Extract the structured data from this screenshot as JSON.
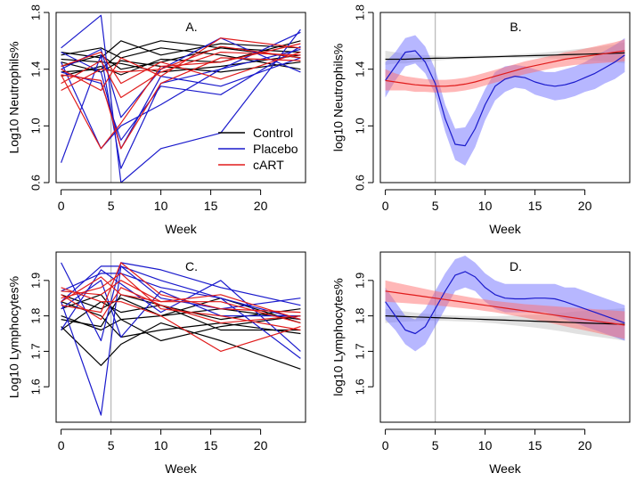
{
  "colors": {
    "control": "#000000",
    "placebo": "#1a1acc",
    "cart": "#e01b1b",
    "vline": "#bbbbbb"
  },
  "chart_data": [
    {
      "id": "A",
      "type": "line",
      "panel_label": "A.",
      "xlabel": "Week",
      "ylabel": "Log10 Neutrophils%",
      "xlim": [
        -0.5,
        24.5
      ],
      "ylim": [
        0.6,
        1.8
      ],
      "xticks": [
        0,
        5,
        10,
        15,
        20
      ],
      "yticks": [
        0.6,
        1.0,
        1.4,
        1.8
      ],
      "yticklabels": [
        "0.6",
        "1.0",
        "1.4",
        "1.8"
      ],
      "vline_x": 5,
      "x": [
        0,
        4,
        6,
        10,
        16,
        24
      ],
      "legend": {
        "position": "lower-right",
        "entries": [
          {
            "label": "Control",
            "group": "control"
          },
          {
            "label": "Placebo",
            "group": "placebo"
          },
          {
            "label": "cART",
            "group": "cart"
          }
        ]
      },
      "series": [
        {
          "group": "control",
          "values": [
            1.52,
            1.48,
            1.6,
            1.5,
            1.58,
            1.55
          ]
        },
        {
          "group": "control",
          "values": [
            1.47,
            1.45,
            1.44,
            1.38,
            1.42,
            1.5
          ]
        },
        {
          "group": "control",
          "values": [
            1.42,
            1.5,
            1.4,
            1.45,
            1.55,
            1.52
          ]
        },
        {
          "group": "control",
          "values": [
            1.38,
            1.4,
            1.52,
            1.6,
            1.55,
            1.48
          ]
        },
        {
          "group": "control",
          "values": [
            1.45,
            1.38,
            1.46,
            1.42,
            1.38,
            1.45
          ]
        },
        {
          "group": "control",
          "values": [
            1.5,
            1.55,
            1.48,
            1.55,
            1.5,
            1.4
          ]
        },
        {
          "group": "control",
          "values": [
            1.35,
            1.42,
            1.36,
            1.47,
            1.45,
            1.6
          ]
        },
        {
          "group": "placebo",
          "values": [
            1.55,
            1.78,
            0.6,
            0.84,
            0.95,
            1.68
          ]
        },
        {
          "group": "placebo",
          "values": [
            0.74,
            1.5,
            0.7,
            1.3,
            1.4,
            1.54
          ]
        },
        {
          "group": "placebo",
          "values": [
            1.52,
            1.38,
            0.84,
            1.35,
            1.28,
            1.48
          ]
        },
        {
          "group": "placebo",
          "values": [
            1.4,
            1.54,
            1.06,
            1.4,
            1.62,
            1.38
          ]
        },
        {
          "group": "placebo",
          "values": [
            1.45,
            0.84,
            1.0,
            1.15,
            1.4,
            1.66
          ]
        },
        {
          "group": "placebo",
          "values": [
            1.38,
            1.3,
            0.9,
            1.28,
            1.22,
            1.56
          ]
        },
        {
          "group": "cart",
          "values": [
            1.3,
            1.46,
            1.2,
            1.38,
            1.52,
            1.5
          ]
        },
        {
          "group": "cart",
          "values": [
            1.4,
            1.25,
            1.48,
            1.35,
            1.62,
            1.55
          ]
        },
        {
          "group": "cart",
          "values": [
            1.36,
            0.84,
            1.02,
            1.42,
            1.45,
            1.58
          ]
        },
        {
          "group": "cart",
          "values": [
            1.42,
            1.52,
            1.3,
            1.45,
            1.33,
            1.52
          ]
        },
        {
          "group": "cart",
          "values": [
            1.36,
            1.32,
            0.84,
            1.3,
            1.48,
            1.46
          ]
        },
        {
          "group": "cart",
          "values": [
            1.25,
            1.4,
            1.38,
            1.4,
            1.56,
            1.48
          ]
        }
      ]
    },
    {
      "id": "B",
      "type": "line",
      "panel_label": "B.",
      "xlabel": "Week",
      "ylabel": "log10 Neutrophils%",
      "xlim": [
        -0.5,
        24.5
      ],
      "ylim": [
        0.6,
        1.8
      ],
      "xticks": [
        0,
        5,
        10,
        15,
        20
      ],
      "yticks": [
        0.6,
        1.0,
        1.4,
        1.8
      ],
      "yticklabels": [
        "0.6",
        "1.0",
        "1.4",
        "1.8"
      ],
      "vline_x": 5,
      "x": [
        0,
        1,
        2,
        3,
        4,
        5,
        6,
        7,
        8,
        9,
        10,
        11,
        12,
        13,
        14,
        15,
        16,
        17,
        18,
        19,
        20,
        21,
        22,
        23,
        24
      ],
      "series": [
        {
          "group": "control",
          "values": [
            1.47,
            1.47,
            1.47,
            1.473,
            1.475,
            1.477,
            1.478,
            1.48,
            1.482,
            1.484,
            1.486,
            1.488,
            1.49,
            1.492,
            1.494,
            1.496,
            1.498,
            1.5,
            1.502,
            1.504,
            1.506,
            1.508,
            1.51,
            1.512,
            1.515
          ],
          "lower": [
            1.43,
            1.44,
            1.44,
            1.45,
            1.45,
            1.46,
            1.465,
            1.47,
            1.47,
            1.475,
            1.477,
            1.478,
            1.48,
            1.48,
            1.48,
            1.48,
            1.478,
            1.475,
            1.472,
            1.468,
            1.465,
            1.46,
            1.455,
            1.45,
            1.44
          ],
          "upper": [
            1.53,
            1.52,
            1.51,
            1.5,
            1.5,
            1.495,
            1.492,
            1.49,
            1.494,
            1.495,
            1.496,
            1.498,
            1.5,
            1.505,
            1.508,
            1.512,
            1.518,
            1.525,
            1.532,
            1.54,
            1.547,
            1.555,
            1.565,
            1.575,
            1.59
          ]
        },
        {
          "group": "placebo",
          "values": [
            1.32,
            1.42,
            1.52,
            1.53,
            1.45,
            1.3,
            1.05,
            0.87,
            0.86,
            0.98,
            1.15,
            1.28,
            1.33,
            1.35,
            1.34,
            1.31,
            1.29,
            1.28,
            1.29,
            1.31,
            1.34,
            1.37,
            1.41,
            1.45,
            1.5
          ],
          "lower": [
            1.2,
            1.32,
            1.42,
            1.44,
            1.37,
            1.22,
            0.96,
            0.76,
            0.72,
            0.85,
            1.04,
            1.18,
            1.24,
            1.27,
            1.26,
            1.22,
            1.2,
            1.18,
            1.19,
            1.21,
            1.24,
            1.26,
            1.3,
            1.33,
            1.38
          ],
          "upper": [
            1.45,
            1.52,
            1.62,
            1.64,
            1.56,
            1.4,
            1.15,
            0.98,
            0.99,
            1.11,
            1.26,
            1.38,
            1.42,
            1.43,
            1.42,
            1.4,
            1.38,
            1.38,
            1.4,
            1.42,
            1.45,
            1.49,
            1.53,
            1.57,
            1.62
          ]
        },
        {
          "group": "cart",
          "values": [
            1.32,
            1.31,
            1.3,
            1.29,
            1.285,
            1.28,
            1.28,
            1.285,
            1.295,
            1.31,
            1.33,
            1.35,
            1.37,
            1.39,
            1.41,
            1.425,
            1.44,
            1.455,
            1.47,
            1.48,
            1.49,
            1.5,
            1.51,
            1.52,
            1.53
          ],
          "lower": [
            1.25,
            1.25,
            1.25,
            1.24,
            1.24,
            1.235,
            1.235,
            1.24,
            1.25,
            1.265,
            1.285,
            1.305,
            1.325,
            1.345,
            1.365,
            1.38,
            1.395,
            1.41,
            1.42,
            1.43,
            1.435,
            1.44,
            1.445,
            1.45,
            1.455
          ],
          "upper": [
            1.4,
            1.37,
            1.35,
            1.34,
            1.33,
            1.325,
            1.325,
            1.33,
            1.34,
            1.355,
            1.375,
            1.395,
            1.415,
            1.435,
            1.455,
            1.47,
            1.485,
            1.5,
            1.52,
            1.53,
            1.545,
            1.56,
            1.575,
            1.59,
            1.61
          ]
        }
      ]
    },
    {
      "id": "C",
      "type": "line",
      "panel_label": "C.",
      "xlabel": "Week",
      "ylabel": "Log10 Lymphocytes%",
      "xlim": [
        -0.5,
        24.5
      ],
      "ylim": [
        1.5,
        1.98
      ],
      "xticks": [
        0,
        5,
        10,
        15,
        20
      ],
      "yticks": [
        1.6,
        1.7,
        1.8,
        1.9
      ],
      "yticklabels": [
        "1.6",
        "1.7",
        "1.8",
        "1.9"
      ],
      "vline_x": 5,
      "x": [
        0,
        4,
        6,
        10,
        16,
        24
      ],
      "series": [
        {
          "group": "control",
          "values": [
            1.8,
            1.76,
            1.79,
            1.73,
            1.77,
            1.8
          ]
        },
        {
          "group": "control",
          "values": [
            1.77,
            1.66,
            1.72,
            1.78,
            1.73,
            1.65
          ]
        },
        {
          "group": "control",
          "values": [
            1.84,
            1.8,
            1.74,
            1.76,
            1.78,
            1.75
          ]
        },
        {
          "group": "control",
          "values": [
            1.82,
            1.86,
            1.79,
            1.8,
            1.82,
            1.79
          ]
        },
        {
          "group": "control",
          "values": [
            1.76,
            1.84,
            1.81,
            1.83,
            1.79,
            1.82
          ]
        },
        {
          "group": "control",
          "values": [
            1.86,
            1.82,
            1.85,
            1.8,
            1.85,
            1.78
          ]
        },
        {
          "group": "control",
          "values": [
            1.79,
            1.77,
            1.86,
            1.83,
            1.76,
            1.76
          ]
        },
        {
          "group": "placebo",
          "values": [
            1.95,
            1.73,
            1.95,
            1.93,
            1.88,
            1.83
          ]
        },
        {
          "group": "placebo",
          "values": [
            1.84,
            1.52,
            1.94,
            1.9,
            1.85,
            1.68
          ]
        },
        {
          "group": "placebo",
          "values": [
            1.84,
            1.94,
            1.94,
            1.85,
            1.82,
            1.85
          ]
        },
        {
          "group": "placebo",
          "values": [
            1.82,
            1.9,
            1.74,
            1.87,
            1.8,
            1.8
          ]
        },
        {
          "group": "placebo",
          "values": [
            1.76,
            1.93,
            1.89,
            1.81,
            1.9,
            1.7
          ]
        },
        {
          "group": "placebo",
          "values": [
            1.87,
            1.92,
            1.92,
            1.88,
            1.85,
            1.79
          ]
        },
        {
          "group": "cart",
          "values": [
            1.87,
            1.86,
            1.9,
            1.84,
            1.84,
            1.78
          ]
        },
        {
          "group": "cart",
          "values": [
            1.85,
            1.88,
            1.92,
            1.82,
            1.8,
            1.76
          ]
        },
        {
          "group": "cart",
          "values": [
            1.84,
            1.91,
            1.86,
            1.84,
            1.86,
            1.79
          ]
        },
        {
          "group": "cart",
          "values": [
            1.88,
            1.84,
            1.84,
            1.8,
            1.7,
            1.77
          ]
        },
        {
          "group": "cart",
          "values": [
            1.83,
            1.81,
            1.95,
            1.86,
            1.82,
            1.81
          ]
        },
        {
          "group": "cart",
          "values": [
            1.86,
            1.79,
            1.88,
            1.83,
            1.78,
            1.8
          ]
        }
      ]
    },
    {
      "id": "D",
      "type": "line",
      "panel_label": "D.",
      "xlabel": "Week",
      "ylabel": "log10 Lymphocytes%",
      "xlim": [
        -0.5,
        24.5
      ],
      "ylim": [
        1.5,
        1.98
      ],
      "xticks": [
        0,
        5,
        10,
        15,
        20
      ],
      "yticks": [
        1.6,
        1.7,
        1.8,
        1.9
      ],
      "yticklabels": [
        "1.6",
        "1.7",
        "1.8",
        "1.9"
      ],
      "vline_x": 5,
      "x": [
        0,
        1,
        2,
        3,
        4,
        5,
        6,
        7,
        8,
        9,
        10,
        11,
        12,
        13,
        14,
        15,
        16,
        17,
        18,
        19,
        20,
        21,
        22,
        23,
        24
      ],
      "series": [
        {
          "group": "control",
          "values": [
            1.8,
            1.799,
            1.798,
            1.797,
            1.796,
            1.795,
            1.794,
            1.793,
            1.792,
            1.791,
            1.79,
            1.789,
            1.788,
            1.787,
            1.786,
            1.785,
            1.784,
            1.783,
            1.782,
            1.781,
            1.78,
            1.779,
            1.778,
            1.777,
            1.776
          ],
          "lower": [
            1.78,
            1.782,
            1.784,
            1.785,
            1.786,
            1.786,
            1.786,
            1.785,
            1.784,
            1.783,
            1.781,
            1.779,
            1.776,
            1.773,
            1.77,
            1.767,
            1.763,
            1.759,
            1.755,
            1.75,
            1.746,
            1.742,
            1.738,
            1.734,
            1.73
          ],
          "upper": [
            1.82,
            1.816,
            1.812,
            1.809,
            1.806,
            1.804,
            1.802,
            1.801,
            1.8,
            1.799,
            1.799,
            1.799,
            1.8,
            1.801,
            1.802,
            1.803,
            1.805,
            1.807,
            1.809,
            1.812,
            1.814,
            1.816,
            1.818,
            1.82,
            1.822
          ]
        },
        {
          "group": "placebo",
          "values": [
            1.84,
            1.8,
            1.76,
            1.75,
            1.77,
            1.82,
            1.87,
            1.915,
            1.925,
            1.91,
            1.88,
            1.86,
            1.85,
            1.848,
            1.848,
            1.85,
            1.85,
            1.848,
            1.84,
            1.83,
            1.82,
            1.81,
            1.8,
            1.79,
            1.78
          ],
          "lower": [
            1.79,
            1.76,
            1.72,
            1.7,
            1.72,
            1.77,
            1.82,
            1.87,
            1.88,
            1.87,
            1.84,
            1.82,
            1.81,
            1.81,
            1.81,
            1.81,
            1.81,
            1.8,
            1.79,
            1.78,
            1.77,
            1.76,
            1.75,
            1.74,
            1.73
          ],
          "upper": [
            1.88,
            1.84,
            1.8,
            1.79,
            1.82,
            1.87,
            1.92,
            1.96,
            1.97,
            1.95,
            1.92,
            1.9,
            1.89,
            1.89,
            1.89,
            1.89,
            1.89,
            1.89,
            1.88,
            1.88,
            1.87,
            1.86,
            1.85,
            1.84,
            1.83
          ]
        },
        {
          "group": "cart",
          "values": [
            1.87,
            1.866,
            1.862,
            1.858,
            1.854,
            1.85,
            1.846,
            1.842,
            1.838,
            1.834,
            1.83,
            1.826,
            1.822,
            1.818,
            1.814,
            1.81,
            1.806,
            1.802,
            1.798,
            1.794,
            1.79,
            1.786,
            1.782,
            1.778,
            1.774
          ],
          "lower": [
            1.84,
            1.838,
            1.836,
            1.834,
            1.832,
            1.83,
            1.827,
            1.824,
            1.821,
            1.818,
            1.814,
            1.81,
            1.805,
            1.8,
            1.795,
            1.789,
            1.783,
            1.777,
            1.771,
            1.765,
            1.759,
            1.753,
            1.747,
            1.741,
            1.735
          ],
          "upper": [
            1.9,
            1.894,
            1.888,
            1.882,
            1.876,
            1.87,
            1.865,
            1.86,
            1.855,
            1.85,
            1.846,
            1.842,
            1.839,
            1.836,
            1.833,
            1.831,
            1.829,
            1.827,
            1.825,
            1.823,
            1.821,
            1.819,
            1.817,
            1.815,
            1.813
          ]
        }
      ]
    }
  ]
}
